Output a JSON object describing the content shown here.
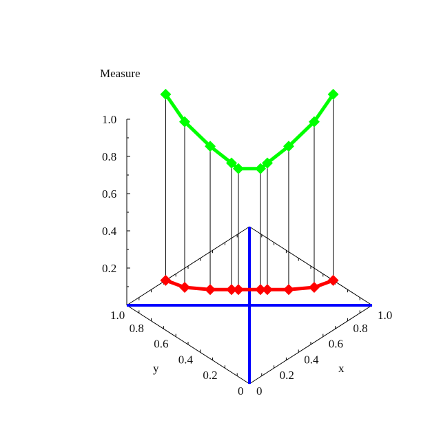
{
  "chart_data": {
    "type": "scatter3d",
    "zlabel": "Measure",
    "xlabel": "x",
    "ylabel": "y",
    "xlim": [
      0,
      1
    ],
    "ylim": [
      0,
      1
    ],
    "zlim": [
      0,
      1.0
    ],
    "x_ticks": [
      "0",
      "0.2",
      "0.4",
      "0.6",
      "0.8",
      "1.0"
    ],
    "y_ticks": [
      "0",
      "0.2",
      "0.4",
      "0.6",
      "0.8",
      "1.0"
    ],
    "z_ticks": [
      "0.2",
      "0.4",
      "0.6",
      "0.8",
      "1.0"
    ],
    "reference_lines": [
      {
        "from": [
          0,
          1
        ],
        "to": [
          1,
          0
        ],
        "color": "#0000ff"
      },
      {
        "from": [
          0,
          0
        ],
        "to": [
          1,
          1
        ],
        "color": "#0000ff"
      }
    ],
    "series": [
      {
        "color": "#ff0000",
        "marker": "diamond",
        "points": [
          [
            0.317,
            1.0,
            0
          ],
          [
            0.35,
            0.878,
            0
          ],
          [
            0.44,
            0.76,
            0
          ],
          [
            0.527,
            0.673,
            0
          ],
          [
            0.555,
            0.645,
            0
          ],
          [
            0.645,
            0.555,
            0
          ],
          [
            0.673,
            0.527,
            0
          ],
          [
            0.76,
            0.44,
            0
          ],
          [
            0.878,
            0.35,
            0
          ],
          [
            1.0,
            0.317,
            0
          ]
        ]
      },
      {
        "color": "#00ff00",
        "marker": "diamond",
        "points": [
          [
            0.317,
            1.0,
            1.0
          ],
          [
            0.35,
            0.878,
            0.89
          ],
          [
            0.44,
            0.76,
            0.77
          ],
          [
            0.527,
            0.673,
            0.68
          ],
          [
            0.555,
            0.645,
            0.65
          ],
          [
            0.645,
            0.555,
            0.65
          ],
          [
            0.673,
            0.527,
            0.68
          ],
          [
            0.76,
            0.44,
            0.77
          ],
          [
            0.878,
            0.35,
            0.89
          ],
          [
            1.0,
            0.317,
            1.0
          ]
        ]
      }
    ],
    "stems": true
  }
}
